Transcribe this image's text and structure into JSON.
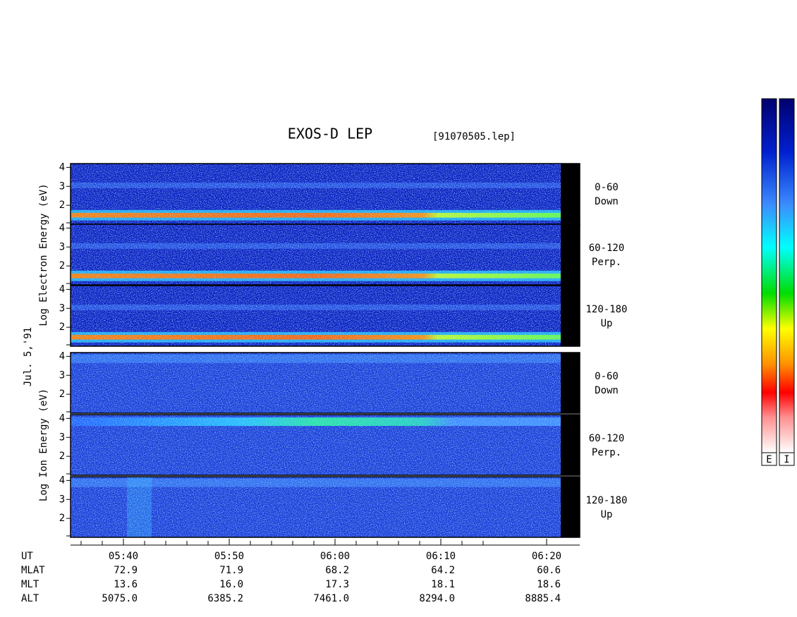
{
  "title": "EXOS-D LEP",
  "file": "[91070505.lep]",
  "date": "Jul. 5,'91",
  "groups": [
    {
      "ylabel": "Log Electron Energy (eV)",
      "panels": [
        {
          "angle": "0-60",
          "direction": "Down"
        },
        {
          "angle": "60-120",
          "direction": "Perp."
        },
        {
          "angle": "120-180",
          "direction": "Up"
        }
      ]
    },
    {
      "ylabel": "Log Ion Energy (eV)",
      "panels": [
        {
          "angle": "0-60",
          "direction": "Down"
        },
        {
          "angle": "60-120",
          "direction": "Perp."
        },
        {
          "angle": "120-180",
          "direction": "Up"
        }
      ]
    }
  ],
  "ylim": [
    1,
    4.2
  ],
  "yticks": [
    2,
    3,
    4
  ],
  "time_ticks": [
    "05:40",
    "05:50",
    "06:00",
    "06:10",
    "06:20"
  ],
  "ephemeris": [
    {
      "label": "UT",
      "values": []
    },
    {
      "label": "MLAT",
      "values": [
        "72.9",
        "71.9",
        "68.2",
        "64.2",
        "60.6"
      ]
    },
    {
      "label": "MLT",
      "values": [
        "13.6",
        "16.0",
        "17.3",
        "18.1",
        "18.6"
      ]
    },
    {
      "label": "ALT",
      "values": [
        "5075.0",
        "6385.2",
        "7461.0",
        "8294.0",
        "8885.4"
      ]
    }
  ],
  "colorbars": [
    "E",
    "I"
  ]
}
